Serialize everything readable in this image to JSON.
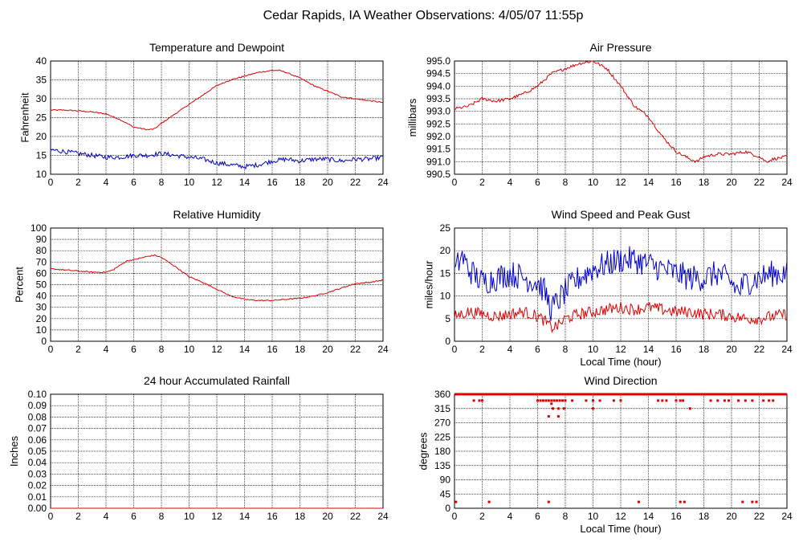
{
  "page_title": "Cedar Rapids, IA Weather Observations: 4/05/07 11:55p",
  "chart_data": [
    {
      "id": "temp",
      "type": "line",
      "title": "Temperature and Dewpoint",
      "xlabel": "",
      "ylabel": "Fahrenheit",
      "xlim": [
        0,
        24
      ],
      "ylim": [
        10,
        40
      ],
      "xticks": [
        "0",
        "2",
        "4",
        "6",
        "8",
        "10",
        "12",
        "14",
        "16",
        "18",
        "20",
        "22",
        "24"
      ],
      "yticks": [
        "10",
        "15",
        "20",
        "25",
        "30",
        "35",
        "40"
      ],
      "grid": true,
      "series": [
        {
          "color": "#dd0000",
          "noise": 0.15,
          "x": [
            0,
            1,
            2,
            3,
            4,
            5,
            6,
            7,
            7.5,
            8,
            9,
            10,
            11,
            12,
            13,
            14,
            15,
            16,
            16.5,
            17,
            18,
            19,
            20,
            21,
            22,
            23,
            24
          ],
          "y": [
            27,
            27,
            26.8,
            26.5,
            26,
            24.5,
            22.5,
            21.8,
            22,
            23.5,
            26,
            28.5,
            31,
            33.5,
            35,
            36,
            37,
            37.5,
            37.5,
            37,
            35.5,
            33.5,
            32,
            30.5,
            30,
            29.5,
            29
          ]
        },
        {
          "color": "#0000cc",
          "noise": 0.6,
          "x": [
            0,
            1,
            2,
            3,
            4,
            5,
            6,
            7,
            8,
            9,
            10,
            11,
            12,
            13,
            14,
            15,
            16,
            17,
            18,
            19,
            20,
            21,
            22,
            23,
            24
          ],
          "y": [
            16.5,
            16,
            15.5,
            15,
            14.5,
            14.5,
            15,
            15,
            15.5,
            15,
            14.5,
            14,
            13,
            12.5,
            12,
            12.5,
            13.5,
            14,
            13.5,
            14,
            14,
            13.5,
            14,
            14,
            14.5
          ]
        }
      ]
    },
    {
      "id": "pressure",
      "type": "line",
      "title": "Air Pressure",
      "xlabel": "",
      "ylabel": "millibars",
      "xlim": [
        0,
        24
      ],
      "ylim": [
        990.5,
        995.0
      ],
      "xticks": [
        "0",
        "2",
        "4",
        "6",
        "8",
        "10",
        "12",
        "14",
        "16",
        "18",
        "20",
        "22",
        "24"
      ],
      "yticks": [
        "990.5",
        "991.0",
        "991.5",
        "992.0",
        "992.5",
        "993.0",
        "993.5",
        "994.0",
        "994.5",
        "995.0"
      ],
      "grid": true,
      "series": [
        {
          "color": "#dd0000",
          "noise": 0.06,
          "x": [
            0,
            1,
            2,
            3,
            4,
            5,
            6,
            7,
            8,
            9,
            10,
            11,
            12,
            13,
            14,
            15,
            16,
            17,
            17.5,
            18,
            19,
            20,
            21,
            22,
            22.5,
            23,
            24
          ],
          "y": [
            993.1,
            993.2,
            993.5,
            993.4,
            993.5,
            993.7,
            994.0,
            994.5,
            994.7,
            994.9,
            995.0,
            994.7,
            994.0,
            993.2,
            992.8,
            992.0,
            991.4,
            991.1,
            991.0,
            991.2,
            991.3,
            991.3,
            991.4,
            991.2,
            991.0,
            991.1,
            991.2
          ]
        }
      ]
    },
    {
      "id": "rh",
      "type": "line",
      "title": "Relative Humidity",
      "xlabel": "",
      "ylabel": "Percent",
      "xlim": [
        0,
        24
      ],
      "ylim": [
        0,
        100
      ],
      "xticks": [
        "0",
        "2",
        "4",
        "6",
        "8",
        "10",
        "12",
        "14",
        "16",
        "18",
        "20",
        "22",
        "24"
      ],
      "yticks": [
        "0",
        "10",
        "20",
        "30",
        "40",
        "50",
        "60",
        "70",
        "80",
        "90",
        "100"
      ],
      "grid": true,
      "series": [
        {
          "color": "#dd0000",
          "noise": 0.5,
          "x": [
            0,
            1,
            2,
            3,
            4,
            4.5,
            5,
            5.5,
            6,
            7,
            7.5,
            8,
            9,
            10,
            11,
            12,
            13,
            14,
            15,
            16,
            17,
            18,
            19,
            20,
            21,
            22,
            23,
            24
          ],
          "y": [
            64,
            63,
            62,
            61,
            61,
            63,
            67,
            71,
            72,
            75,
            76,
            74,
            66,
            57,
            52,
            46,
            40,
            37,
            36,
            36,
            37,
            38,
            40,
            43,
            47,
            51,
            52,
            54
          ]
        }
      ]
    },
    {
      "id": "wind",
      "type": "line",
      "title": "Wind Speed and Peak Gust",
      "xlabel": "Local Time (hour)",
      "ylabel": "miles/hour",
      "xlim": [
        0,
        24
      ],
      "ylim": [
        0,
        25
      ],
      "xticks": [
        "0",
        "2",
        "4",
        "6",
        "8",
        "10",
        "12",
        "14",
        "16",
        "18",
        "20",
        "22",
        "24"
      ],
      "yticks": [
        "0",
        "5",
        "10",
        "15",
        "20",
        "25"
      ],
      "grid": true,
      "series": [
        {
          "color": "#0000cc",
          "noise": 3.0,
          "x": [
            0,
            0.5,
            1,
            2,
            3,
            4,
            5,
            6,
            6.5,
            7,
            7.5,
            8,
            9,
            10,
            11,
            12,
            13,
            14,
            15,
            16,
            17,
            18,
            19,
            20,
            20.5,
            21,
            22,
            23,
            24
          ],
          "y": [
            15,
            19,
            16,
            13,
            14,
            15,
            14,
            13,
            11,
            7,
            9,
            11,
            14,
            16,
            17,
            18,
            18,
            17,
            16,
            15,
            14,
            14,
            15,
            13,
            11,
            13,
            14,
            15,
            15
          ]
        },
        {
          "color": "#dd0000",
          "noise": 1.3,
          "x": [
            0,
            1,
            2,
            3,
            4,
            5,
            6,
            6.5,
            7,
            7.5,
            8,
            9,
            10,
            11,
            12,
            13,
            14,
            15,
            16,
            17,
            18,
            19,
            20,
            21,
            22,
            23,
            24
          ],
          "y": [
            5.5,
            6.5,
            6,
            5.5,
            6,
            6.5,
            5.5,
            4.5,
            3,
            3.5,
            5,
            6,
            6.5,
            7,
            7.5,
            7,
            7.5,
            7,
            6.5,
            6.5,
            6,
            6,
            5.5,
            5,
            5,
            5.5,
            6
          ]
        }
      ]
    },
    {
      "id": "rain",
      "type": "line",
      "title": "24 hour Accumulated Rainfall",
      "xlabel": "",
      "ylabel": "Inches",
      "xlim": [
        0,
        24
      ],
      "ylim": [
        0,
        0.1
      ],
      "xticks": [
        "0",
        "2",
        "4",
        "6",
        "8",
        "10",
        "12",
        "14",
        "16",
        "18",
        "20",
        "22",
        "24"
      ],
      "yticks": [
        "0.00",
        "0.01",
        "0.02",
        "0.03",
        "0.04",
        "0.05",
        "0.06",
        "0.07",
        "0.08",
        "0.09",
        "0.10"
      ],
      "grid": true,
      "series": [
        {
          "color": "#dd0000",
          "noise": 0,
          "x": [
            0,
            24
          ],
          "y": [
            0,
            0
          ]
        }
      ]
    },
    {
      "id": "dir",
      "type": "scatter",
      "title": "Wind Direction",
      "xlabel": "Local Time (hour)",
      "ylabel": "degrees",
      "xlim": [
        0,
        24
      ],
      "ylim": [
        0,
        360
      ],
      "xticks": [
        "0",
        "2",
        "4",
        "6",
        "8",
        "10",
        "12",
        "14",
        "16",
        "18",
        "20",
        "22",
        "24"
      ],
      "yticks": [
        "0",
        "45",
        "90",
        "135",
        "180",
        "225",
        "270",
        "315",
        "360"
      ],
      "grid": true,
      "series": [
        {
          "color": "#dd0000",
          "band": {
            "y": 360,
            "from": 0,
            "to": 24
          },
          "x": [
            0.1,
            1.4,
            1.8,
            2.0,
            2.5,
            6.0,
            6.2,
            6.4,
            6.6,
            6.8,
            7.0,
            7.2,
            7.4,
            7.6,
            7.8,
            8.0,
            8.5,
            6.8,
            7.1,
            7.5,
            7.9,
            7.0,
            6.8,
            7.5,
            9.5,
            10.0,
            10.0,
            10.5,
            11.5,
            12.0,
            13.3,
            14.7,
            15.0,
            15.3,
            16.0,
            16.3,
            16.5,
            16.3,
            16.6,
            17.0,
            18.5,
            19.0,
            19.5,
            19.8,
            20.5,
            20.8,
            21.0,
            21.5,
            21.5,
            21.8,
            22.3,
            22.7,
            23.0
          ],
          "y": [
            20,
            340,
            340,
            340,
            20,
            340,
            340,
            340,
            340,
            340,
            340,
            340,
            340,
            340,
            340,
            340,
            340,
            20,
            315,
            315,
            315,
            330,
            290,
            290,
            340,
            340,
            315,
            340,
            340,
            340,
            20,
            340,
            340,
            340,
            340,
            340,
            340,
            20,
            20,
            315,
            340,
            340,
            340,
            340,
            340,
            20,
            340,
            20,
            340,
            20,
            340,
            340,
            340
          ]
        }
      ]
    }
  ]
}
